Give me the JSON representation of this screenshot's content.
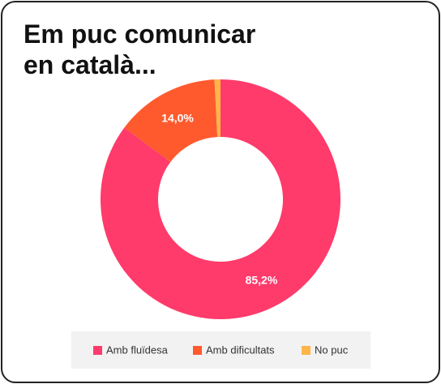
{
  "chart_data": {
    "type": "donut",
    "title": "Em puc comunicar en català...",
    "series": [
      {
        "name": "Amb fluïdesa",
        "color": "#ff3b6b",
        "values": [
          85.2
        ],
        "value_labels": [
          "85,2%"
        ]
      },
      {
        "name": "Amb dificultats",
        "color": "#ff5a2e",
        "values": [
          14.0
        ],
        "value_labels": [
          "14,0%"
        ]
      },
      {
        "name": "No puc",
        "color": "#ffb547",
        "values": [
          0.8
        ]
      }
    ],
    "legend": "bottom"
  }
}
